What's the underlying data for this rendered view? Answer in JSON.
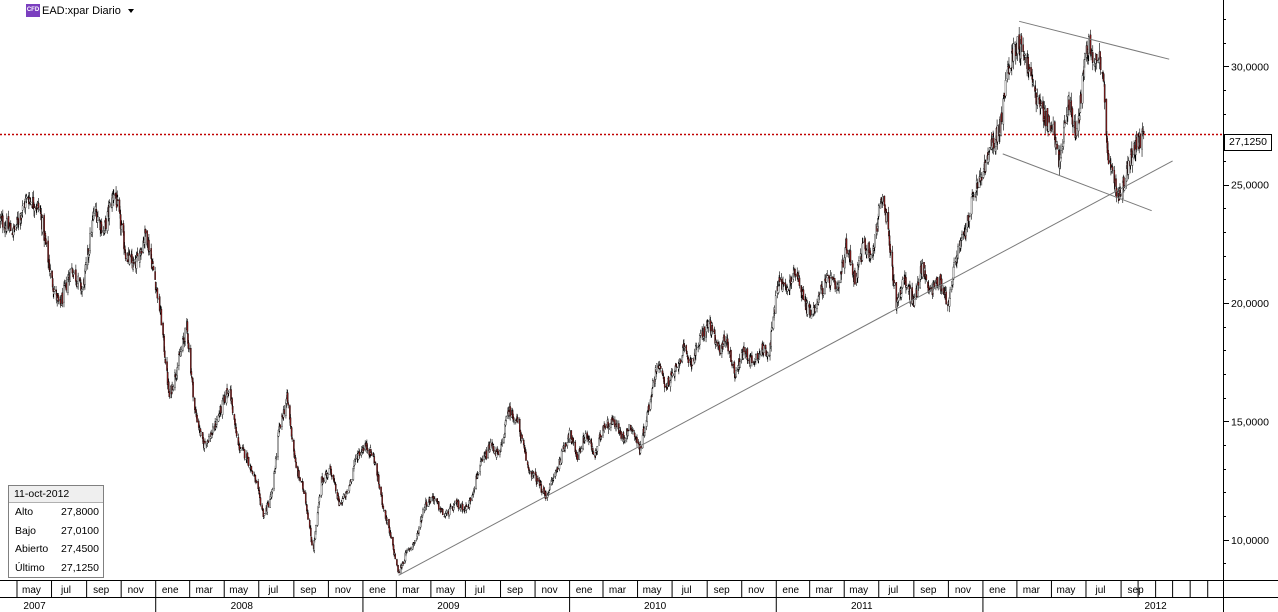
{
  "header": {
    "badge": "CFD",
    "symbol": "EAD:xpar Diario"
  },
  "info_box": {
    "date": "11-oct-2012",
    "rows": [
      {
        "label": "Alto",
        "value": "27,8000"
      },
      {
        "label": "Bajo",
        "value": "27,0100"
      },
      {
        "label": "Abierto",
        "value": "27,4500"
      },
      {
        "label": "Último",
        "value": "27,1250"
      }
    ]
  },
  "last_price_label": "27,1250",
  "colors": {
    "up": "#ffffff",
    "down": "#8b1a1a",
    "outline": "#000000",
    "reference_line": "#c00000",
    "trendline": "#7a7a7a",
    "grid": "#000000"
  },
  "chart_data": {
    "type": "candlestick",
    "title": "EAD:xpar Diario",
    "ylim": [
      8.3,
      32.8
    ],
    "y_ticks": [
      "10,0000",
      "15,0000",
      "20,0000",
      "25,0000",
      "30,0000"
    ],
    "y_tick_values": [
      10,
      15,
      20,
      25,
      30
    ],
    "last_price": 27.125,
    "x_start": "2007-04-01",
    "x_end": "2013-02-28",
    "month_labels": [
      "may",
      "jul",
      "sep",
      "nov",
      "ene",
      "mar",
      "may",
      "jul",
      "sep",
      "nov",
      "ene",
      "mar",
      "may",
      "jul",
      "sep",
      "nov",
      "ene",
      "mar",
      "may",
      "jul",
      "sep",
      "nov",
      "ene",
      "mar",
      "may",
      "jul",
      "sep",
      "nov",
      "ene",
      "mar",
      "may",
      "jul",
      "sep"
    ],
    "month_dates": [
      "2007-05",
      "2007-07",
      "2007-09",
      "2007-11",
      "2008-01",
      "2008-03",
      "2008-05",
      "2008-07",
      "2008-09",
      "2008-11",
      "2009-01",
      "2009-03",
      "2009-05",
      "2009-07",
      "2009-09",
      "2009-11",
      "2010-01",
      "2010-03",
      "2010-05",
      "2010-07",
      "2010-09",
      "2010-11",
      "2011-01",
      "2011-03",
      "2011-05",
      "2011-07",
      "2011-09",
      "2011-11",
      "2012-01",
      "2012-03",
      "2012-05",
      "2012-07",
      "2012-09"
    ],
    "year_labels": [
      "2007",
      "2008",
      "2009",
      "2010",
      "2011",
      "2012"
    ],
    "year_dates": [
      "2007-06-01",
      "2008-06-01",
      "2009-06-01",
      "2010-06-01",
      "2011-06-01",
      "2012-11-01"
    ],
    "close_path": [
      [
        "2007-04-01",
        23.5
      ],
      [
        "2007-04-25",
        23.0
      ],
      [
        "2007-05-20",
        24.5
      ],
      [
        "2007-06-10",
        24.0
      ],
      [
        "2007-07-01",
        21.0
      ],
      [
        "2007-07-15",
        19.8
      ],
      [
        "2007-08-05",
        21.5
      ],
      [
        "2007-08-25",
        20.5
      ],
      [
        "2007-09-15",
        24.0
      ],
      [
        "2007-10-01",
        23.0
      ],
      [
        "2007-10-20",
        24.8
      ],
      [
        "2007-11-10",
        22.0
      ],
      [
        "2007-11-25",
        21.5
      ],
      [
        "2007-12-15",
        23.0
      ],
      [
        "2007-12-31",
        21.0
      ],
      [
        "2008-01-10",
        19.5
      ],
      [
        "2008-01-25",
        16.0
      ],
      [
        "2008-02-10",
        17.5
      ],
      [
        "2008-02-25",
        19.0
      ],
      [
        "2008-03-10",
        15.5
      ],
      [
        "2008-03-25",
        14.0
      ],
      [
        "2008-04-10",
        14.5
      ],
      [
        "2008-04-25",
        15.5
      ],
      [
        "2008-05-10",
        16.5
      ],
      [
        "2008-05-25",
        14.0
      ],
      [
        "2008-06-10",
        13.5
      ],
      [
        "2008-06-25",
        12.5
      ],
      [
        "2008-07-10",
        11.0
      ],
      [
        "2008-07-25",
        12.0
      ],
      [
        "2008-08-05",
        14.5
      ],
      [
        "2008-08-20",
        16.0
      ],
      [
        "2008-09-05",
        13.0
      ],
      [
        "2008-09-20",
        12.0
      ],
      [
        "2008-10-05",
        9.5
      ],
      [
        "2008-10-20",
        12.5
      ],
      [
        "2008-11-05",
        13.0
      ],
      [
        "2008-11-20",
        11.5
      ],
      [
        "2008-12-05",
        12.0
      ],
      [
        "2008-12-20",
        13.5
      ],
      [
        "2009-01-05",
        14.0
      ],
      [
        "2009-01-20",
        13.5
      ],
      [
        "2009-02-05",
        11.5
      ],
      [
        "2009-02-20",
        10.0
      ],
      [
        "2009-03-05",
        8.6
      ],
      [
        "2009-03-20",
        9.5
      ],
      [
        "2009-04-05",
        10.0
      ],
      [
        "2009-04-20",
        11.5
      ],
      [
        "2009-05-05",
        11.8
      ],
      [
        "2009-05-25",
        11.0
      ],
      [
        "2009-06-15",
        11.5
      ],
      [
        "2009-07-05",
        11.3
      ],
      [
        "2009-07-25",
        13.0
      ],
      [
        "2009-08-15",
        14.0
      ],
      [
        "2009-08-30",
        13.5
      ],
      [
        "2009-09-15",
        15.5
      ],
      [
        "2009-10-01",
        15.0
      ],
      [
        "2009-10-20",
        13.0
      ],
      [
        "2009-11-05",
        12.5
      ],
      [
        "2009-11-20",
        11.8
      ],
      [
        "2009-12-10",
        13.0
      ],
      [
        "2009-12-31",
        14.5
      ],
      [
        "2010-01-15",
        13.5
      ],
      [
        "2010-01-30",
        14.5
      ],
      [
        "2010-02-15",
        13.5
      ],
      [
        "2010-03-01",
        14.8
      ],
      [
        "2010-03-20",
        15.0
      ],
      [
        "2010-04-05",
        14.3
      ],
      [
        "2010-04-20",
        14.8
      ],
      [
        "2010-05-05",
        13.8
      ],
      [
        "2010-05-20",
        15.5
      ],
      [
        "2010-06-05",
        17.5
      ],
      [
        "2010-06-20",
        16.5
      ],
      [
        "2010-07-05",
        17.0
      ],
      [
        "2010-07-20",
        18.0
      ],
      [
        "2010-08-05",
        17.5
      ],
      [
        "2010-08-20",
        18.5
      ],
      [
        "2010-09-05",
        19.2
      ],
      [
        "2010-09-20",
        18.0
      ],
      [
        "2010-10-05",
        18.5
      ],
      [
        "2010-10-20",
        17.0
      ],
      [
        "2010-11-05",
        18.0
      ],
      [
        "2010-11-20",
        17.5
      ],
      [
        "2010-12-05",
        18.0
      ],
      [
        "2010-12-20",
        18.0
      ],
      [
        "2011-01-05",
        21.0
      ],
      [
        "2011-01-20",
        20.5
      ],
      [
        "2011-02-05",
        21.5
      ],
      [
        "2011-02-20",
        20.0
      ],
      [
        "2011-03-05",
        19.5
      ],
      [
        "2011-03-20",
        20.5
      ],
      [
        "2011-04-05",
        21.0
      ],
      [
        "2011-04-20",
        20.5
      ],
      [
        "2011-05-05",
        22.5
      ],
      [
        "2011-05-20",
        21.0
      ],
      [
        "2011-06-05",
        22.5
      ],
      [
        "2011-06-20",
        22.0
      ],
      [
        "2011-07-05",
        24.5
      ],
      [
        "2011-07-15",
        23.5
      ],
      [
        "2011-08-01",
        20.0
      ],
      [
        "2011-08-15",
        21.0
      ],
      [
        "2011-09-01",
        20.0
      ],
      [
        "2011-09-15",
        21.5
      ],
      [
        "2011-10-01",
        20.5
      ],
      [
        "2011-10-15",
        21.0
      ],
      [
        "2011-11-01",
        20.0
      ],
      [
        "2011-11-15",
        22.0
      ],
      [
        "2011-12-01",
        23.0
      ],
      [
        "2011-12-15",
        24.5
      ],
      [
        "2012-01-01",
        25.5
      ],
      [
        "2012-01-15",
        26.5
      ],
      [
        "2012-02-01",
        27.5
      ],
      [
        "2012-02-15",
        30.0
      ],
      [
        "2012-03-01",
        31.0
      ],
      [
        "2012-03-15",
        30.5
      ],
      [
        "2012-04-01",
        29.0
      ],
      [
        "2012-04-15",
        28.0
      ],
      [
        "2012-05-01",
        27.5
      ],
      [
        "2012-05-15",
        26.0
      ],
      [
        "2012-06-01",
        28.5
      ],
      [
        "2012-06-15",
        27.0
      ],
      [
        "2012-07-01",
        31.0
      ],
      [
        "2012-07-15",
        30.5
      ],
      [
        "2012-07-31",
        30.0
      ],
      [
        "2012-08-05",
        27.5
      ],
      [
        "2012-08-10",
        26.0
      ],
      [
        "2012-08-20",
        25.0
      ],
      [
        "2012-08-30",
        24.5
      ],
      [
        "2012-09-10",
        25.5
      ],
      [
        "2012-09-25",
        26.5
      ],
      [
        "2012-10-11",
        27.125
      ]
    ],
    "trendlines": [
      {
        "from": [
          "2009-03-05",
          8.5
        ],
        "to": [
          "2012-12-01",
          26.0
        ]
      },
      {
        "from": [
          "2012-03-05",
          31.9
        ],
        "to": [
          "2012-11-25",
          30.3
        ]
      },
      {
        "from": [
          "2012-02-05",
          26.3
        ],
        "to": [
          "2012-10-25",
          23.9
        ]
      }
    ]
  }
}
